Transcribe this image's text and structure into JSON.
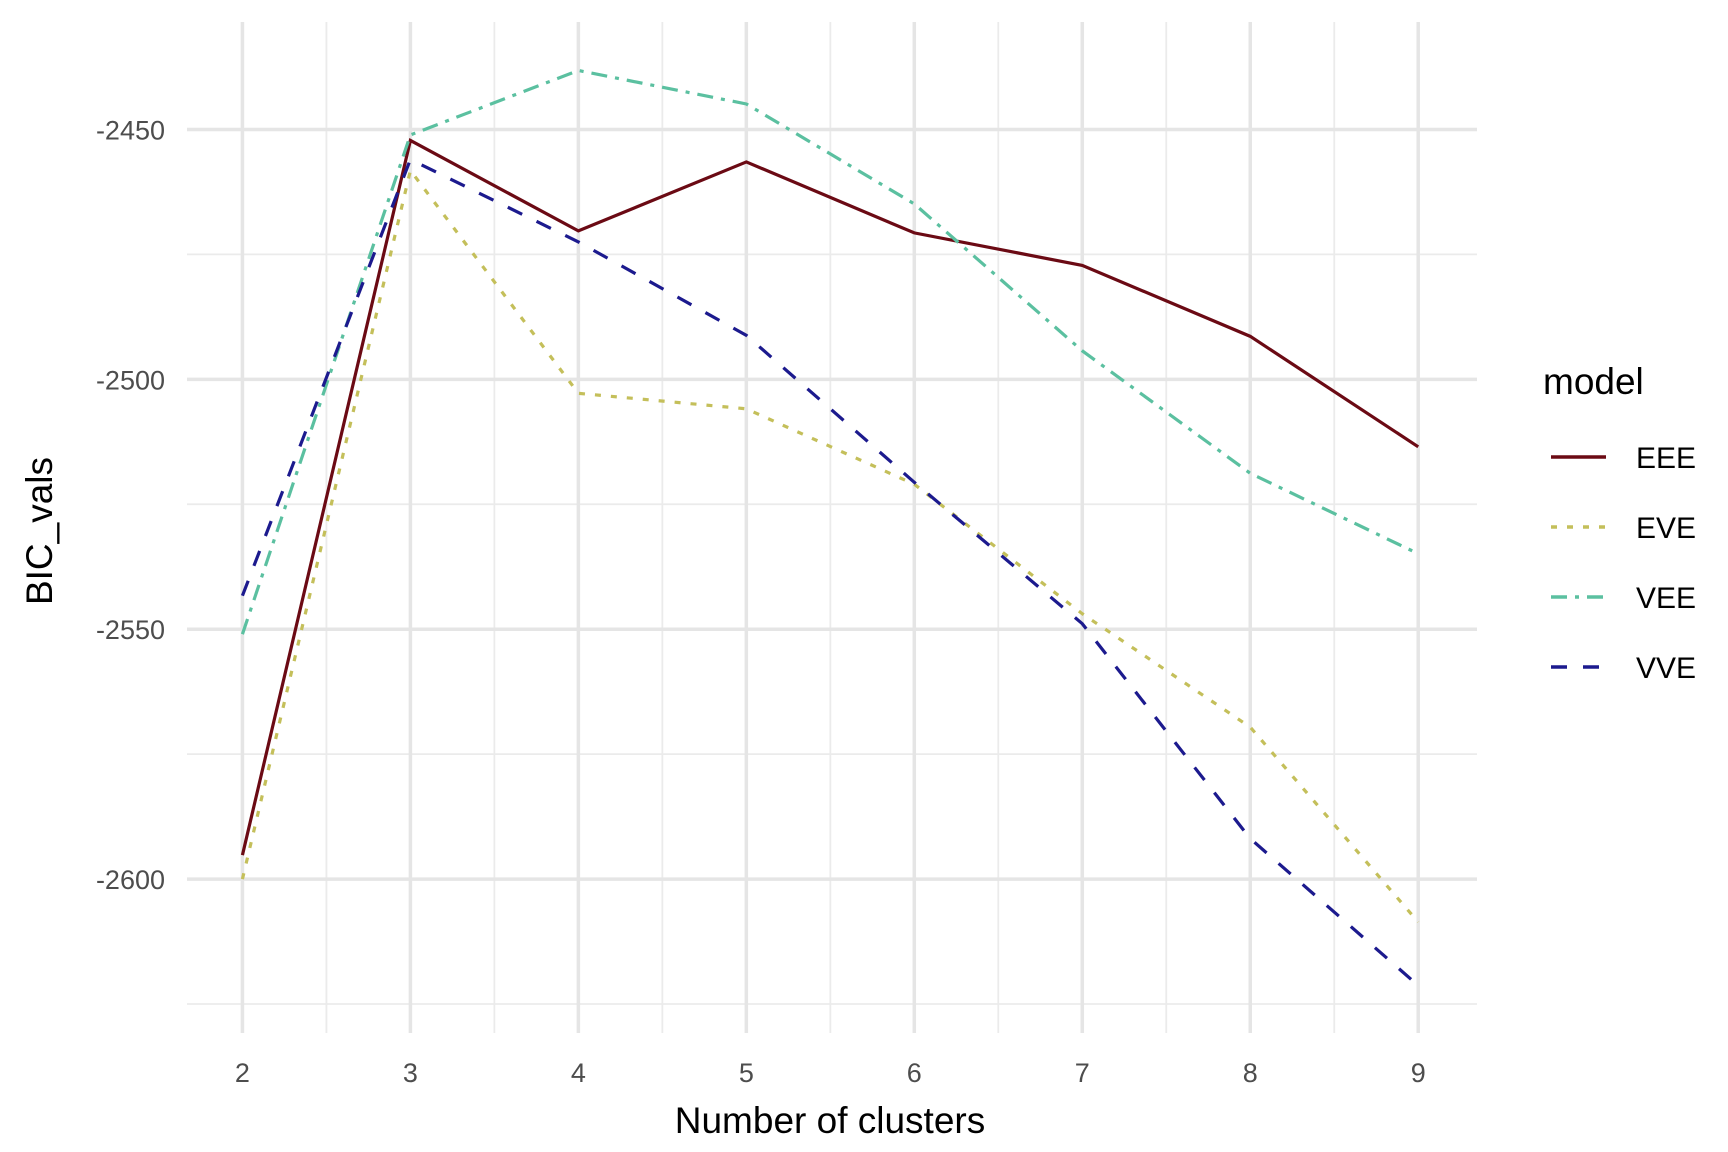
{
  "chart_data": {
    "type": "line",
    "xlabel": "Number of clusters",
    "ylabel": "BIC_vals",
    "x": [
      2,
      3,
      4,
      5,
      6,
      7,
      8,
      9
    ],
    "xticks": [
      "2",
      "3",
      "4",
      "5",
      "6",
      "7",
      "8",
      "9"
    ],
    "yticks": [
      -2450,
      -2500,
      -2550,
      -2600
    ],
    "ytick_labels": [
      "-2450",
      "-2500",
      "-2550",
      "-2600"
    ],
    "xlim": [
      1.67,
      9.35
    ],
    "ylim": [
      -2630.8,
      -2428.5
    ],
    "grid": true,
    "legend": {
      "title": "model",
      "placement": "right"
    },
    "series": [
      {
        "name": "EEE",
        "color": "#6b0a14",
        "dash": "solid",
        "values": [
          -2595.2,
          -2452.2,
          -2470.3,
          -2456.5,
          -2470.7,
          -2477.2,
          -2491.4,
          -2513.5
        ]
      },
      {
        "name": "EVE",
        "color": "#c4bf5a",
        "dash": "dotted",
        "values": [
          -2600.0,
          -2458.2,
          -2502.8,
          -2505.9,
          -2521.0,
          -2546.9,
          -2569.6,
          -2608.6
        ]
      },
      {
        "name": "VEE",
        "color": "#5bc0a0",
        "dash": "dashdot",
        "values": [
          -2551.0,
          -2451.1,
          -2438.2,
          -2444.9,
          -2464.9,
          -2494.3,
          -2518.8,
          -2534.9
        ]
      },
      {
        "name": "VVE",
        "color": "#1c1a8e",
        "dash": "dashed",
        "values": [
          -2543.3,
          -2456.0,
          -2472.5,
          -2491.2,
          -2520.6,
          -2548.9,
          -2591.9,
          -2621.3
        ]
      }
    ]
  }
}
